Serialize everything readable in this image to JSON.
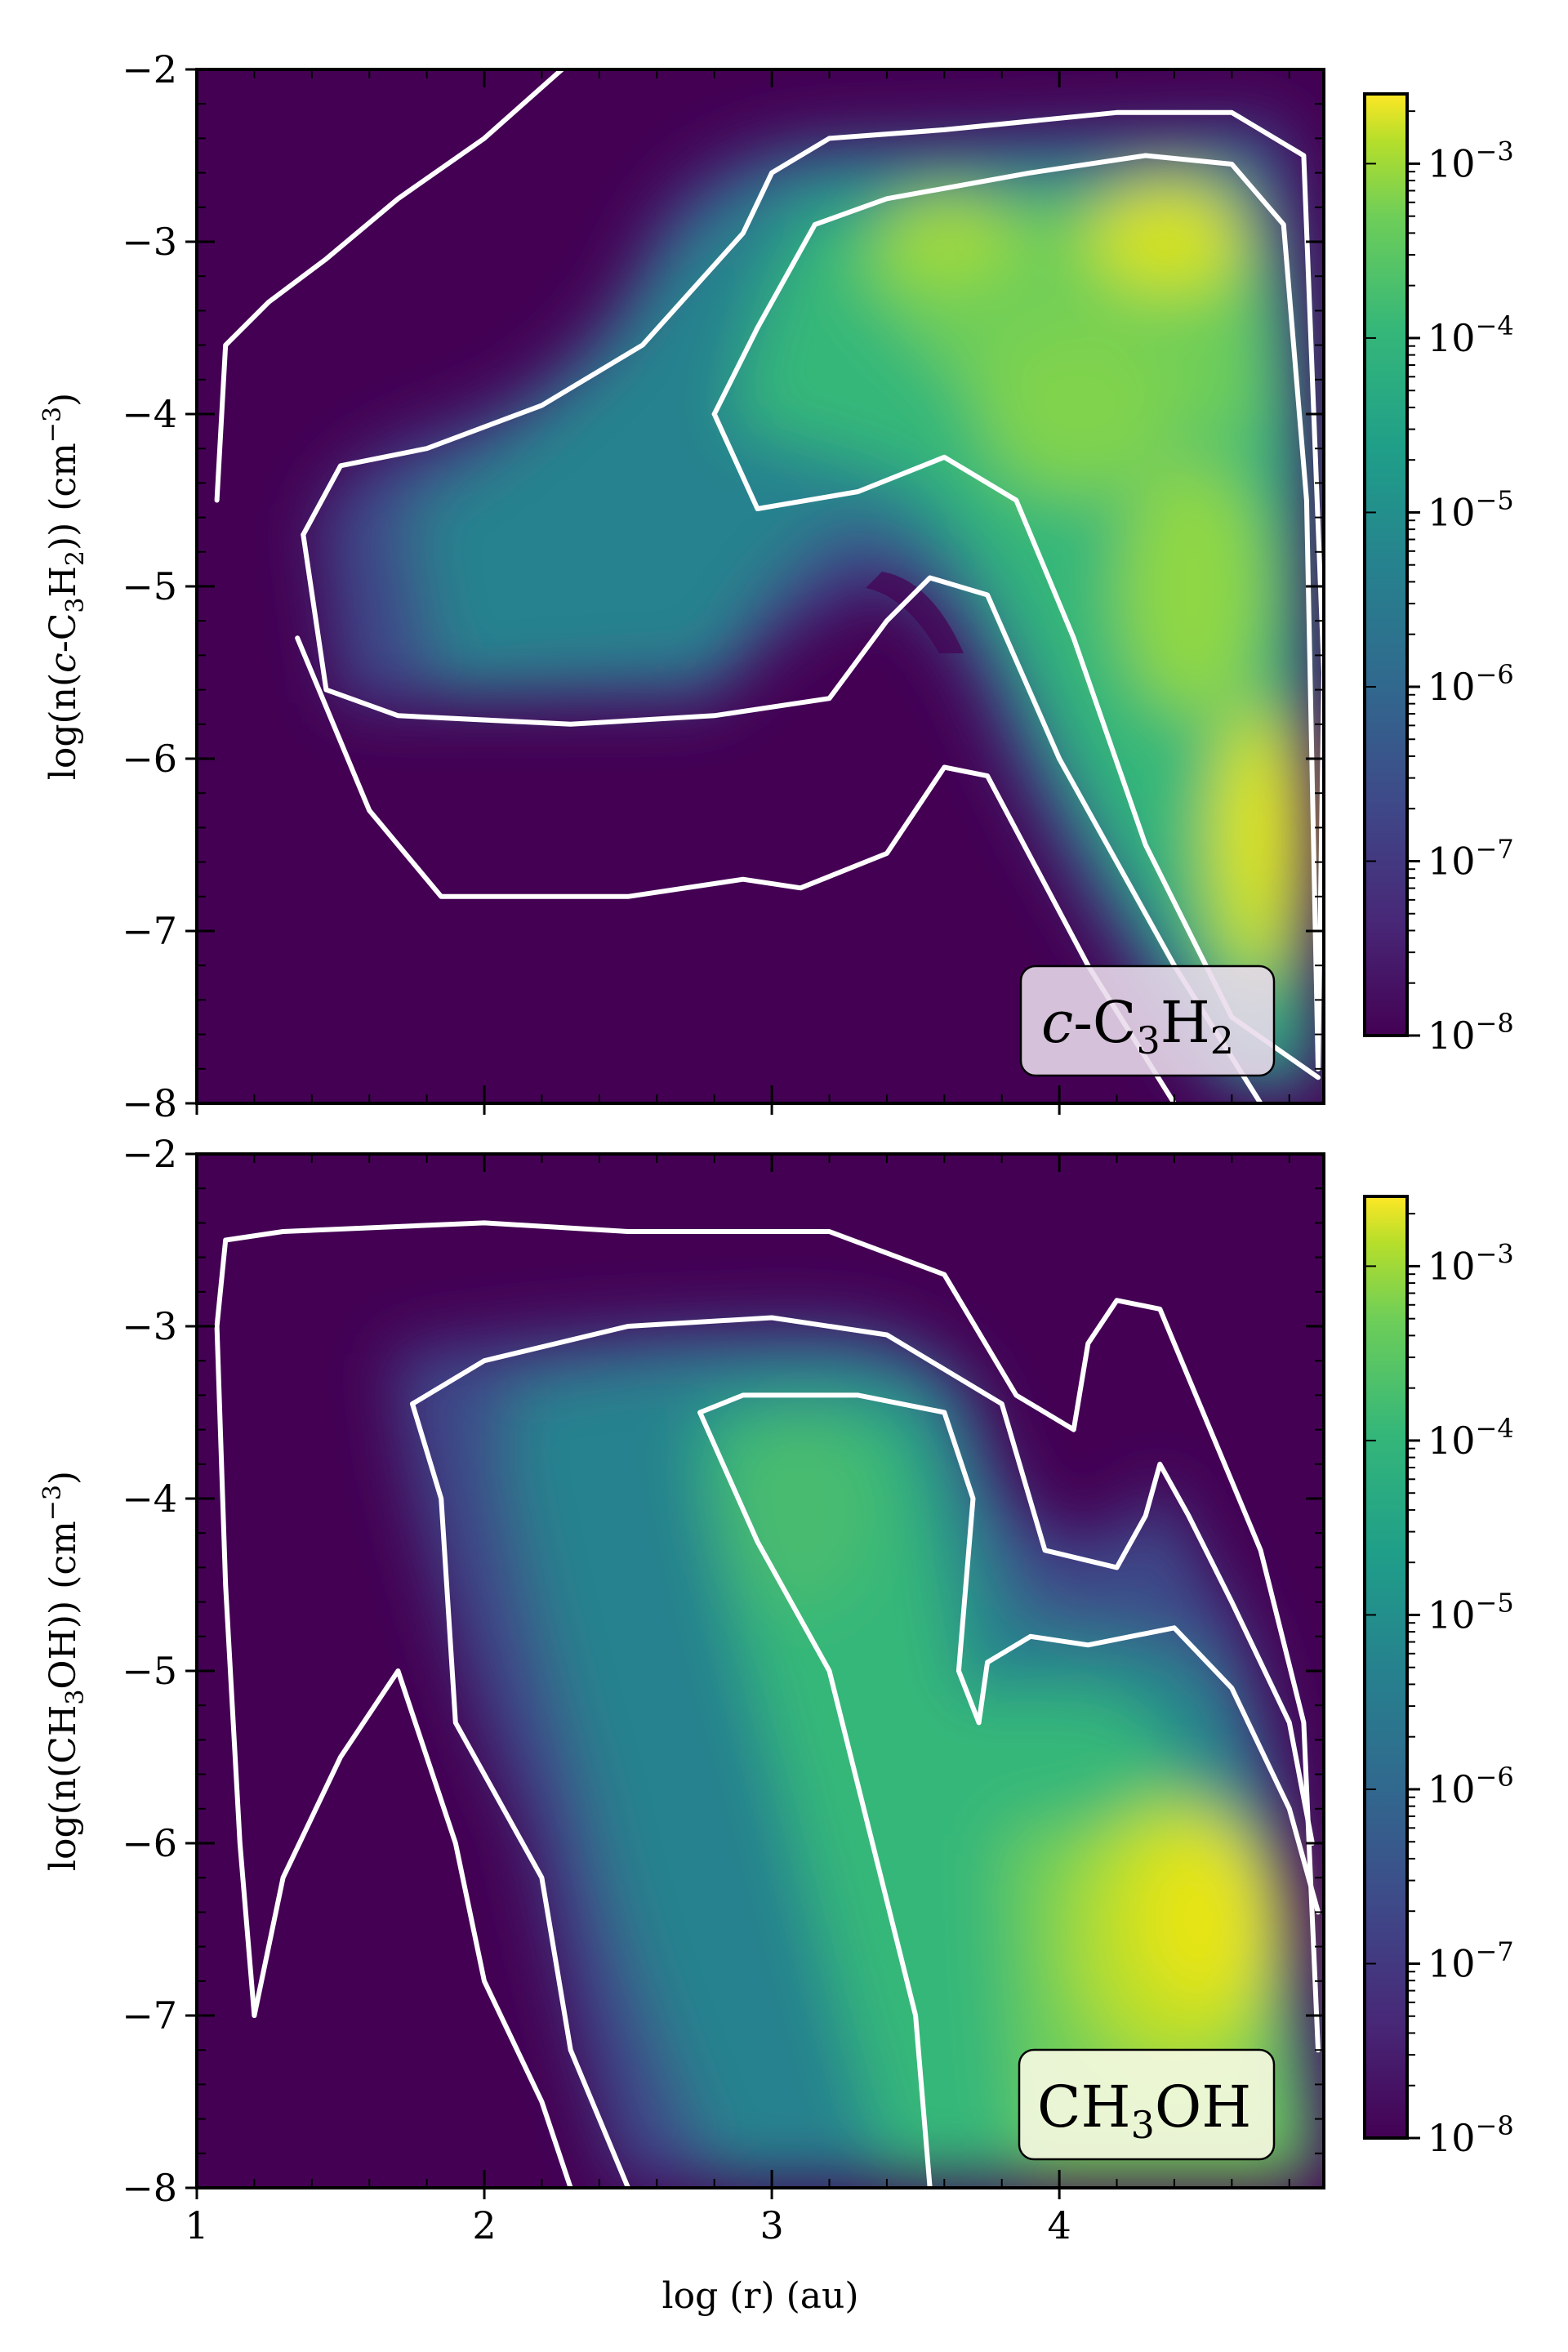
{
  "chart_data": [
    {
      "type": "heatmap",
      "panel": "top",
      "species_label": "c-C3H2",
      "species_label_parts": {
        "prefix": "c",
        "mid": "-C",
        "sub1": "3",
        "mid2": "H",
        "sub2": "2"
      },
      "ylabel": "log(n(c-C3H2)) (cm−3)",
      "xlabel": "",
      "xlim": [
        1,
        4.92
      ],
      "ylim": [
        -8,
        -2
      ],
      "x_ticks": [
        1,
        2,
        3,
        4
      ],
      "y_ticks": [
        -8,
        -7,
        -6,
        -5,
        -4,
        -3,
        -2
      ],
      "y_tick_labels": [
        "−8",
        "−7",
        "−6",
        "−5",
        "−4",
        "−3",
        "−2"
      ],
      "colorbar": {
        "scale": "log",
        "min_exp": -8,
        "max_exp": -2.6,
        "tick_exps": [
          -8,
          -7,
          -6,
          -5,
          -4,
          -3
        ],
        "labels": [
          "10",
          "10",
          "10",
          "10",
          "10",
          "10"
        ],
        "exponents": [
          "−8",
          "−7",
          "−6",
          "−5",
          "−4",
          "−3"
        ],
        "colormap": "viridis"
      },
      "hotspots": [
        {
          "x": 4.38,
          "y": -2.95,
          "log_value": -2.8
        },
        {
          "x": 4.68,
          "y": -6.45,
          "log_value": -2.9
        },
        {
          "x": 4.0,
          "y": -3.6,
          "log_value": -3.6
        },
        {
          "x": 3.3,
          "y": -3.6,
          "log_value": -4.2
        },
        {
          "x": 2.5,
          "y": -4.9,
          "log_value": -5.6
        }
      ],
      "contours": [
        {
          "level": "outer",
          "points": [
            [
              1.07,
              -4.5
            ],
            [
              1.1,
              -3.6
            ],
            [
              1.25,
              -3.35
            ],
            [
              1.45,
              -3.1
            ],
            [
              1.7,
              -2.75
            ],
            [
              2.0,
              -2.4
            ],
            [
              2.27,
              -2.0
            ]
          ]
        },
        {
          "level": "outer2",
          "points": [
            [
              1.35,
              -5.3
            ],
            [
              1.6,
              -6.3
            ],
            [
              1.85,
              -6.8
            ],
            [
              2.5,
              -6.8
            ],
            [
              2.9,
              -6.7
            ],
            [
              3.1,
              -6.75
            ],
            [
              3.4,
              -6.55
            ],
            [
              3.6,
              -6.05
            ],
            [
              3.75,
              -6.1
            ],
            [
              4.1,
              -7.2
            ],
            [
              4.4,
              -8.0
            ]
          ]
        },
        {
          "level": "mid",
          "points": [
            [
              1.37,
              -4.7
            ],
            [
              1.5,
              -4.3
            ],
            [
              1.8,
              -4.2
            ],
            [
              2.2,
              -3.95
            ],
            [
              2.55,
              -3.6
            ],
            [
              2.9,
              -2.95
            ],
            [
              3.0,
              -2.6
            ],
            [
              3.2,
              -2.4
            ],
            [
              3.6,
              -2.35
            ],
            [
              4.2,
              -2.25
            ],
            [
              4.6,
              -2.25
            ],
            [
              4.85,
              -2.5
            ],
            [
              4.92,
              -5.5
            ],
            [
              4.9,
              -7.8
            ]
          ]
        },
        {
          "level": "mid_lower",
          "points": [
            [
              1.37,
              -4.7
            ],
            [
              1.45,
              -5.6
            ],
            [
              1.7,
              -5.75
            ],
            [
              2.3,
              -5.8
            ],
            [
              2.8,
              -5.75
            ],
            [
              3.2,
              -5.65
            ],
            [
              3.4,
              -5.2
            ],
            [
              3.55,
              -4.95
            ],
            [
              3.75,
              -5.05
            ],
            [
              4.0,
              -6.0
            ],
            [
              4.4,
              -7.2
            ],
            [
              4.7,
              -8.0
            ]
          ]
        },
        {
          "level": "inner",
          "points": [
            [
              2.8,
              -4.0
            ],
            [
              2.95,
              -3.5
            ],
            [
              3.15,
              -2.9
            ],
            [
              3.4,
              -2.75
            ],
            [
              3.9,
              -2.6
            ],
            [
              4.3,
              -2.5
            ],
            [
              4.6,
              -2.55
            ],
            [
              4.78,
              -2.9
            ],
            [
              4.86,
              -4.5
            ],
            [
              4.9,
              -7.8
            ]
          ]
        },
        {
          "level": "inner_lower",
          "points": [
            [
              2.8,
              -4.0
            ],
            [
              2.95,
              -4.55
            ],
            [
              3.3,
              -4.45
            ],
            [
              3.6,
              -4.25
            ],
            [
              3.85,
              -4.5
            ],
            [
              4.05,
              -5.3
            ],
            [
              4.3,
              -6.5
            ],
            [
              4.6,
              -7.5
            ],
            [
              4.9,
              -7.85
            ]
          ]
        }
      ]
    },
    {
      "type": "heatmap",
      "panel": "bottom",
      "species_label": "CH3OH",
      "species_label_parts": {
        "pre": "CH",
        "sub": "3",
        "post": "OH"
      },
      "ylabel": "log(n(CH3OH)) (cm−3)",
      "xlabel": "log (r) (au)",
      "xlim": [
        1,
        4.92
      ],
      "ylim": [
        -8,
        -2
      ],
      "x_ticks": [
        1,
        2,
        3,
        4
      ],
      "x_tick_labels": [
        "1",
        "2",
        "3",
        "4"
      ],
      "y_ticks": [
        -8,
        -7,
        -6,
        -5,
        -4,
        -3,
        -2
      ],
      "y_tick_labels": [
        "−8",
        "−7",
        "−6",
        "−5",
        "−4",
        "−3",
        "−2"
      ],
      "colorbar": {
        "scale": "log",
        "min_exp": -8,
        "max_exp": -2.6,
        "tick_exps": [
          -8,
          -7,
          -6,
          -5,
          -4,
          -3
        ],
        "labels": [
          "10",
          "10",
          "10",
          "10",
          "10",
          "10"
        ],
        "exponents": [
          "−8",
          "−7",
          "−6",
          "−5",
          "−4",
          "−3"
        ],
        "colormap": "viridis"
      },
      "hotspots": [
        {
          "x": 4.55,
          "y": -6.7,
          "log_value": -2.85
        },
        {
          "x": 4.2,
          "y": -6.2,
          "log_value": -3.3
        },
        {
          "x": 3.2,
          "y": -4.2,
          "log_value": -4.2
        },
        {
          "x": 3.3,
          "y": -6.5,
          "log_value": -4.6
        },
        {
          "x": 2.4,
          "y": -5.0,
          "log_value": -6.0
        }
      ],
      "contours": [
        {
          "level": "outer",
          "points": [
            [
              1.2,
              -7.0
            ],
            [
              1.15,
              -6.0
            ],
            [
              1.1,
              -4.5
            ],
            [
              1.07,
              -3.0
            ],
            [
              1.1,
              -2.5
            ],
            [
              1.3,
              -2.45
            ],
            [
              2.0,
              -2.4
            ],
            [
              2.5,
              -2.45
            ],
            [
              3.2,
              -2.45
            ],
            [
              3.6,
              -2.7
            ],
            [
              3.85,
              -3.4
            ],
            [
              4.05,
              -3.6
            ],
            [
              4.1,
              -3.1
            ],
            [
              4.2,
              -2.85
            ],
            [
              4.35,
              -2.9
            ],
            [
              4.5,
              -3.5
            ],
            [
              4.7,
              -4.3
            ],
            [
              4.85,
              -5.3
            ],
            [
              4.9,
              -7.2
            ]
          ]
        },
        {
          "level": "outer_left",
          "points": [
            [
              1.2,
              -7.0
            ],
            [
              1.3,
              -6.2
            ],
            [
              1.5,
              -5.5
            ],
            [
              1.7,
              -5.0
            ],
            [
              1.9,
              -6.0
            ],
            [
              2.0,
              -6.8
            ],
            [
              2.2,
              -7.5
            ],
            [
              2.3,
              -8.0
            ]
          ]
        },
        {
          "level": "mid",
          "points": [
            [
              2.5,
              -8.0
            ],
            [
              2.3,
              -7.2
            ],
            [
              2.2,
              -6.2
            ],
            [
              1.9,
              -5.3
            ],
            [
              1.85,
              -4.0
            ],
            [
              1.75,
              -3.45
            ],
            [
              2.0,
              -3.2
            ],
            [
              2.5,
              -3.0
            ],
            [
              3.0,
              -2.95
            ],
            [
              3.4,
              -3.05
            ],
            [
              3.8,
              -3.45
            ],
            [
              3.95,
              -4.3
            ],
            [
              4.2,
              -4.4
            ],
            [
              4.3,
              -4.1
            ],
            [
              4.35,
              -3.8
            ],
            [
              4.45,
              -4.1
            ],
            [
              4.6,
              -4.6
            ],
            [
              4.8,
              -5.3
            ],
            [
              4.88,
              -6.0
            ]
          ]
        },
        {
          "level": "mid_inner",
          "points": [
            [
              3.72,
              -5.3
            ],
            [
              3.75,
              -4.95
            ],
            [
              3.9,
              -4.8
            ],
            [
              4.1,
              -4.85
            ],
            [
              4.4,
              -4.75
            ],
            [
              4.6,
              -5.1
            ],
            [
              4.8,
              -5.8
            ],
            [
              4.9,
              -6.4
            ]
          ]
        },
        {
          "level": "inner",
          "points": [
            [
              3.55,
              -8.0
            ],
            [
              3.5,
              -7.0
            ],
            [
              3.35,
              -6.0
            ],
            [
              3.2,
              -5.0
            ],
            [
              2.95,
              -4.25
            ],
            [
              2.75,
              -3.5
            ],
            [
              2.9,
              -3.4
            ],
            [
              3.3,
              -3.4
            ],
            [
              3.6,
              -3.5
            ],
            [
              3.7,
              -4.0
            ],
            [
              3.65,
              -5.0
            ],
            [
              3.72,
              -5.3
            ]
          ]
        }
      ]
    }
  ]
}
